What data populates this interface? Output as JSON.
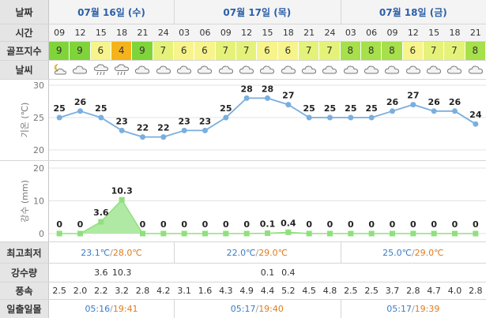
{
  "labels": {
    "date": "날짜",
    "time": "시간",
    "golf_index": "골프지수",
    "weather": "날씨",
    "temp_axis": "기온 (℃)",
    "rain_axis": "강수 (mm)",
    "minmax": "최고최저",
    "rain_amount": "강수량",
    "wind": "풍속",
    "sunrise_sunset": "일출일몰"
  },
  "days": [
    {
      "label": "07월 16일 (수)",
      "min": "23.1℃",
      "max": "28.0℃",
      "sunrise": "05:16",
      "sunset": "19:41"
    },
    {
      "label": "07월 17일 (목)",
      "min": "22.0℃",
      "max": "29.0℃",
      "sunrise": "05:17",
      "sunset": "19:40"
    },
    {
      "label": "07월 18일 (금)",
      "min": "25.0℃",
      "max": "29.0℃",
      "sunrise": "05:17",
      "sunset": "19:39"
    }
  ],
  "day_sep": "/",
  "hours": [
    "09",
    "12",
    "15",
    "18",
    "21",
    "24",
    "03",
    "06",
    "09",
    "12",
    "15",
    "18",
    "21",
    "24",
    "03",
    "06",
    "09",
    "12",
    "15",
    "18",
    "21"
  ],
  "golf_index": [
    "9",
    "9",
    "6",
    "4",
    "9",
    "7",
    "6",
    "6",
    "7",
    "7",
    "6",
    "6",
    "7",
    "7",
    "8",
    "8",
    "8",
    "6",
    "7",
    "7",
    "8"
  ],
  "golf_colors": {
    "9": "#7fd43a",
    "8": "#a6e04a",
    "7": "#e5f27a",
    "6": "#f7f48c",
    "4": "#f5b31b"
  },
  "weather_icons": [
    "partly-cloudy-night-icon",
    "cloudy-icon",
    "rain-icon",
    "rain-icon",
    "cloudy-icon",
    "cloudy-icon",
    "cloudy-icon",
    "cloudy-icon",
    "cloudy-icon",
    "cloudy-icon",
    "cloudy-icon",
    "cloudy-icon",
    "cloudy-icon",
    "cloudy-icon",
    "cloudy-icon",
    "cloudy-icon",
    "cloudy-icon",
    "cloudy-icon",
    "cloudy-icon",
    "cloudy-icon",
    "cloudy-icon"
  ],
  "rain_amount": [
    "",
    "",
    "3.6",
    "10.3",
    "",
    "",
    "",
    "",
    "",
    "",
    "0.1",
    "0.4",
    "",
    "",
    "",
    "",
    "",
    "",
    "",
    "",
    ""
  ],
  "wind": [
    "2.5",
    "2.0",
    "2.2",
    "3.2",
    "2.8",
    "4.2",
    "3.1",
    "1.6",
    "4.3",
    "4.9",
    "4.4",
    "5.2",
    "4.5",
    "4.8",
    "2.5",
    "2.5",
    "3.7",
    "2.8",
    "4.7",
    "4.0",
    "2.8"
  ],
  "chart_data": [
    {
      "type": "line",
      "x": [
        "09",
        "12",
        "15",
        "18",
        "21",
        "24",
        "03",
        "06",
        "09",
        "12",
        "15",
        "18",
        "21",
        "24",
        "03",
        "06",
        "09",
        "12",
        "15",
        "18",
        "21"
      ],
      "values": [
        25,
        26,
        25,
        23,
        22,
        22,
        23,
        23,
        25,
        28,
        28,
        27,
        25,
        25,
        25,
        25,
        26,
        27,
        26,
        26,
        24
      ],
      "ylabel": "기온 (℃)",
      "ylim": [
        20,
        30
      ],
      "yticks": [
        20,
        25,
        30
      ],
      "grid": true,
      "color": "#7aaede"
    },
    {
      "type": "area",
      "x": [
        "09",
        "12",
        "15",
        "18",
        "21",
        "24",
        "03",
        "06",
        "09",
        "12",
        "15",
        "18",
        "21",
        "24",
        "03",
        "06",
        "09",
        "12",
        "15",
        "18",
        "21"
      ],
      "values": [
        0,
        0,
        3.6,
        10.3,
        0,
        0,
        0,
        0,
        0,
        0,
        0.1,
        0.4,
        0,
        0,
        0,
        0,
        0,
        0,
        0,
        0,
        0
      ],
      "labels": [
        "0",
        "0",
        "3.6",
        "10.3",
        "0",
        "0",
        "0",
        "0",
        "0",
        "0",
        "0.1",
        "0.4",
        "0",
        "0",
        "0",
        "0",
        "0",
        "0",
        "0",
        "0",
        "0"
      ],
      "ylabel": "강수 (mm)",
      "ylim": [
        0,
        20
      ],
      "yticks": [
        0,
        10,
        20
      ],
      "grid": true,
      "color": "#8fe07e"
    }
  ]
}
